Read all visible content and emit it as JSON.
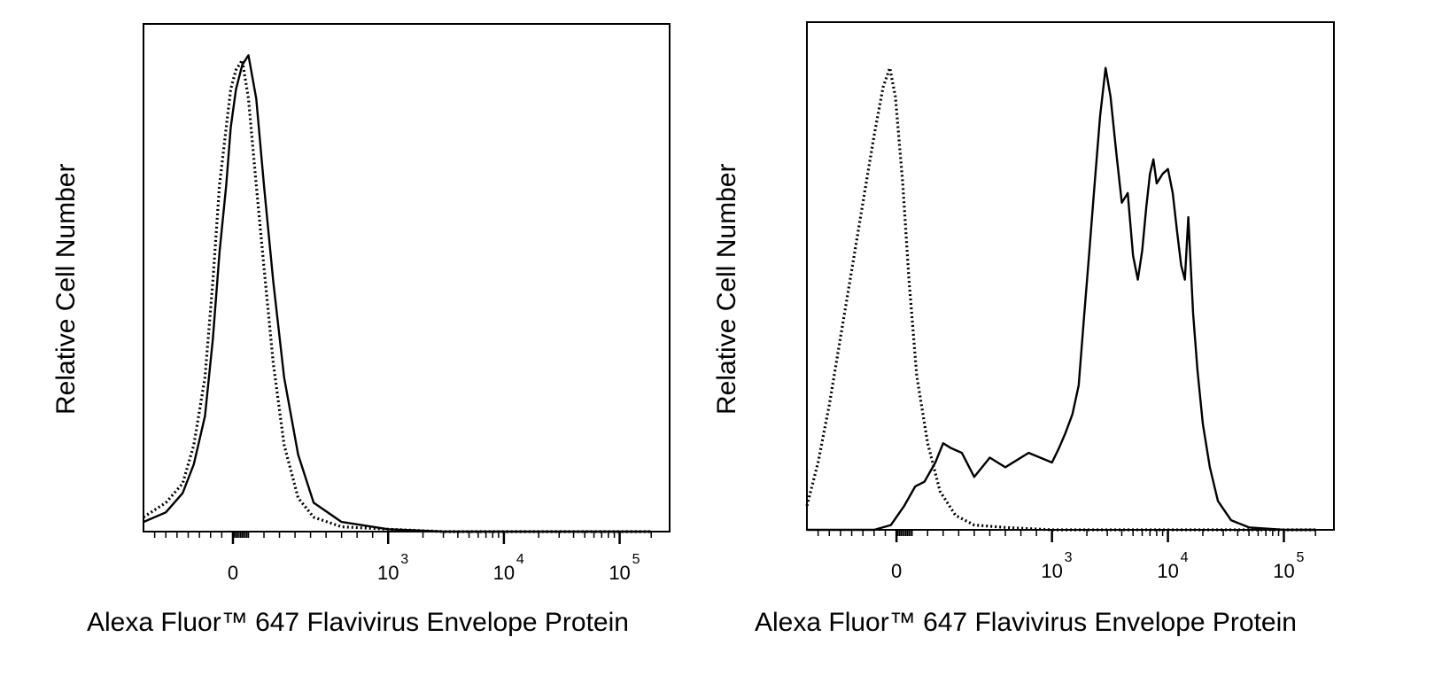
{
  "chart_data": [
    {
      "type": "line",
      "panel": "left",
      "title": "",
      "xlabel": "Alexa Fluor™ 647 Flavivirus Envelope Protein",
      "ylabel": "Relative Cell Number",
      "x_scale": "biexponential",
      "x_tick_labels": [
        {
          "base": "0",
          "exp": ""
        },
        {
          "base": "10",
          "exp": "3"
        },
        {
          "base": "10",
          "exp": "4"
        },
        {
          "base": "10",
          "exp": "5"
        }
      ],
      "xlim": [
        -800,
        200000
      ],
      "ylim": [
        0,
        100
      ],
      "grid": false,
      "series": [
        {
          "style": "dotted",
          "x": [
            -800,
            -600,
            -450,
            -350,
            -250,
            -180,
            -120,
            -60,
            -20,
            20,
            60,
            100,
            150,
            200,
            260,
            330,
            420,
            520,
            700,
            1000,
            3000,
            10000,
            100000,
            200000
          ],
          "y": [
            3,
            6,
            10,
            18,
            32,
            52,
            72,
            84,
            92,
            96,
            98,
            90,
            72,
            55,
            35,
            18,
            7,
            3,
            1,
            0.5,
            0,
            0,
            0,
            0
          ]
        },
        {
          "style": "solid",
          "x": [
            -800,
            -600,
            -450,
            -350,
            -250,
            -180,
            -120,
            -60,
            -20,
            20,
            60,
            100,
            150,
            200,
            260,
            330,
            420,
            520,
            700,
            1000,
            3000,
            10000,
            100000,
            200000
          ],
          "y": [
            2,
            4,
            8,
            14,
            24,
            40,
            58,
            72,
            84,
            92,
            97,
            99,
            90,
            72,
            52,
            32,
            16,
            6,
            2,
            0.5,
            0,
            0,
            0,
            0
          ]
        }
      ]
    },
    {
      "type": "line",
      "panel": "right",
      "title": "",
      "xlabel": "Alexa Fluor™ 647 Flavivirus Envelope Protein",
      "ylabel": "Relative Cell Number",
      "x_scale": "biexponential",
      "x_tick_labels": [
        {
          "base": "0",
          "exp": ""
        },
        {
          "base": "10",
          "exp": "3"
        },
        {
          "base": "10",
          "exp": "4"
        },
        {
          "base": "10",
          "exp": "5"
        }
      ],
      "xlim": [
        -800,
        200000
      ],
      "ylim": [
        0,
        100
      ],
      "grid": false,
      "series": [
        {
          "style": "dotted",
          "x": [
            -800,
            -700,
            -600,
            -500,
            -400,
            -300,
            -200,
            -120,
            -60,
            -10,
            40,
            80,
            130,
            200,
            280,
            380,
            500,
            700,
            1000,
            3000,
            30000,
            200000
          ],
          "y": [
            5,
            14,
            26,
            40,
            54,
            68,
            82,
            92,
            96,
            90,
            72,
            52,
            32,
            18,
            8,
            3,
            1,
            0.5,
            0,
            0,
            0,
            0
          ]
        },
        {
          "style": "solid",
          "x": [
            -800,
            -200,
            -50,
            50,
            120,
            180,
            250,
            300,
            350,
            420,
            500,
            600,
            700,
            850,
            1000,
            1150,
            1300,
            1500,
            1700,
            1900,
            2100,
            2300,
            2600,
            2900,
            3200,
            3600,
            4000,
            4500,
            5000,
            5500,
            6000,
            6500,
            7000,
            7500,
            8000,
            9000,
            10000,
            11000,
            12000,
            13000,
            14000,
            15000,
            16500,
            18000,
            20000,
            23000,
            27000,
            35000,
            50000,
            100000,
            200000
          ],
          "y": [
            0,
            0,
            1,
            5,
            9,
            10,
            14,
            18,
            17,
            16,
            11,
            15,
            13,
            16,
            14,
            17,
            20,
            24,
            30,
            45,
            58,
            70,
            86,
            96,
            90,
            78,
            68,
            70,
            57,
            52,
            58,
            67,
            74,
            77,
            72,
            74,
            75,
            70,
            62,
            55,
            52,
            65,
            45,
            33,
            22,
            13,
            6,
            2,
            0.5,
            0,
            0
          ]
        }
      ]
    }
  ]
}
